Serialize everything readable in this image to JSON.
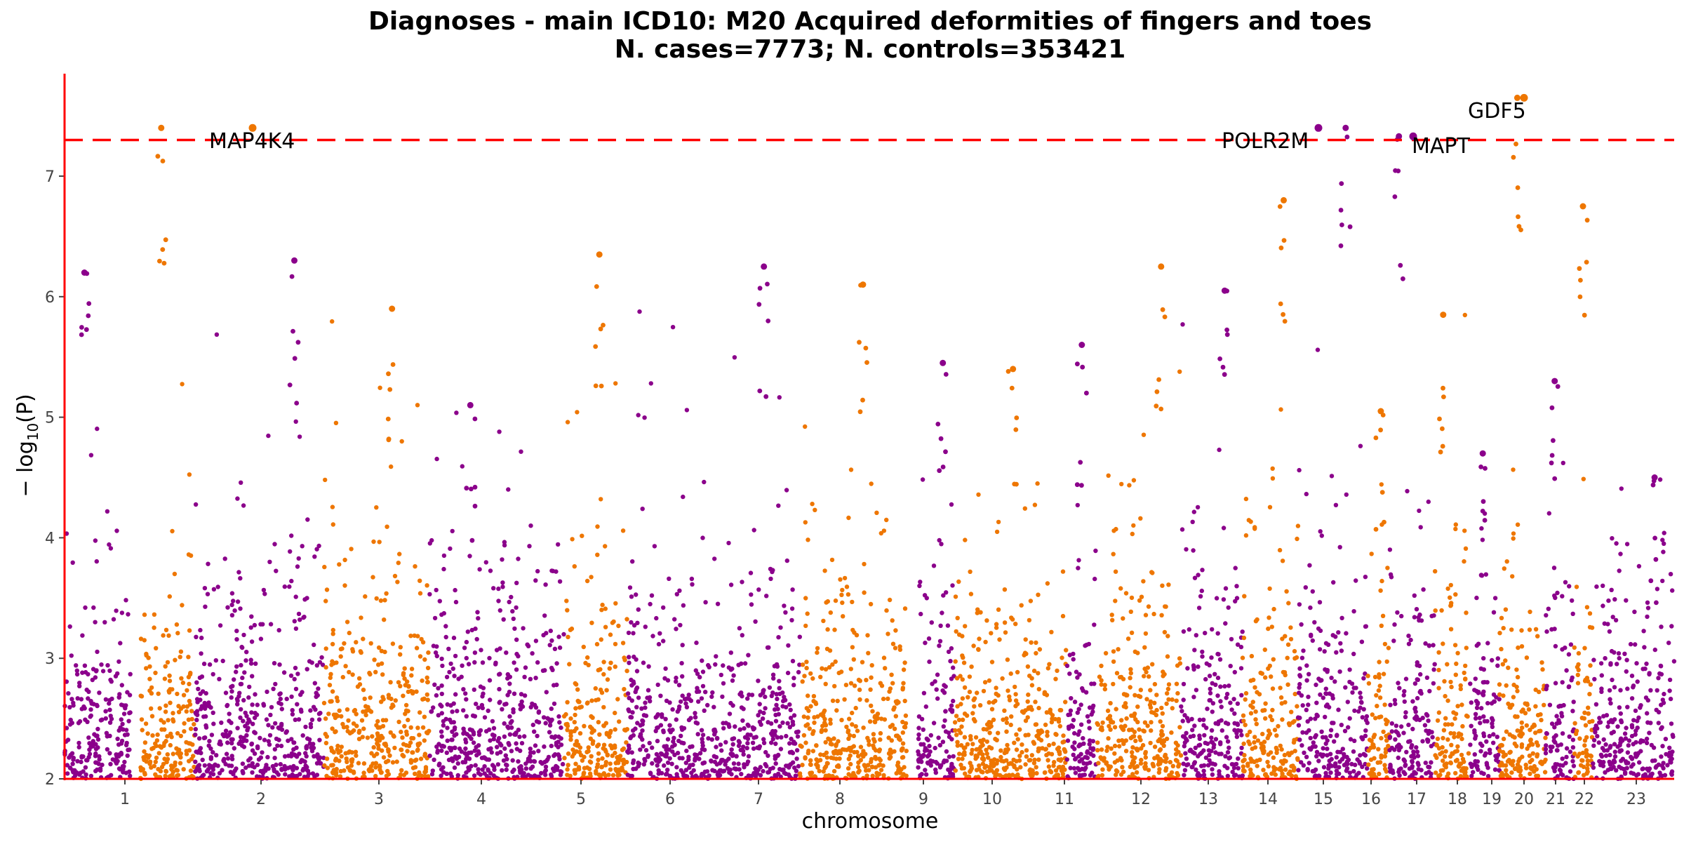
{
  "chart_data": {
    "type": "scatter",
    "title": "Diagnoses - main ICD10: M20 Acquired deformities of fingers and toes",
    "subtitle": "N. cases=7773; N. controls=353421",
    "xlabel": "chromosome",
    "ylabel": "− log10(P)",
    "ylabel_main": "− log",
    "ylabel_sub": "10",
    "ylabel_tail": "(P)",
    "ylim": [
      2,
      7.85
    ],
    "y_ticks": [
      "2",
      "3",
      "4",
      "5",
      "6",
      "7"
    ],
    "significance_line": 7.3,
    "colors": {
      "odd": "#8b008b",
      "even": "#ee7600",
      "threshold": "#ff0000",
      "axis": "#ff0000"
    },
    "chromosomes": [
      {
        "label": "1",
        "peak": 6.2
      },
      {
        "label": "2",
        "peak": 7.4
      },
      {
        "label": "3",
        "peak": 6.3
      },
      {
        "label": "4",
        "peak": 5.9
      },
      {
        "label": "5",
        "peak": 5.1
      },
      {
        "label": "6",
        "peak": 6.35
      },
      {
        "label": "7",
        "peak": 6.25
      },
      {
        "label": "8",
        "peak": 6.1
      },
      {
        "label": "9",
        "peak": 5.45
      },
      {
        "label": "10",
        "peak": 5.4
      },
      {
        "label": "11",
        "peak": 5.6
      },
      {
        "label": "12",
        "peak": 6.25
      },
      {
        "label": "13",
        "peak": 6.05
      },
      {
        "label": "14",
        "peak": 6.8
      },
      {
        "label": "15",
        "peak": 7.4
      },
      {
        "label": "16",
        "peak": 5.05
      },
      {
        "label": "17",
        "peak": 7.33
      },
      {
        "label": "18",
        "peak": 5.85
      },
      {
        "label": "19",
        "peak": 4.7
      },
      {
        "label": "20",
        "peak": 7.65
      },
      {
        "label": "21",
        "peak": 5.3
      },
      {
        "label": "22",
        "peak": 6.75
      },
      {
        "label": "23",
        "peak": 4.5
      }
    ],
    "annotations": [
      {
        "chromosome": "2",
        "gene": "MAP4K4",
        "y": 7.4
      },
      {
        "chromosome": "15",
        "gene": "POLR2M",
        "y": 7.4
      },
      {
        "chromosome": "17",
        "gene": "MAPT",
        "y": 7.33
      },
      {
        "chromosome": "20",
        "gene": "GDF5",
        "y": 7.65
      }
    ]
  }
}
